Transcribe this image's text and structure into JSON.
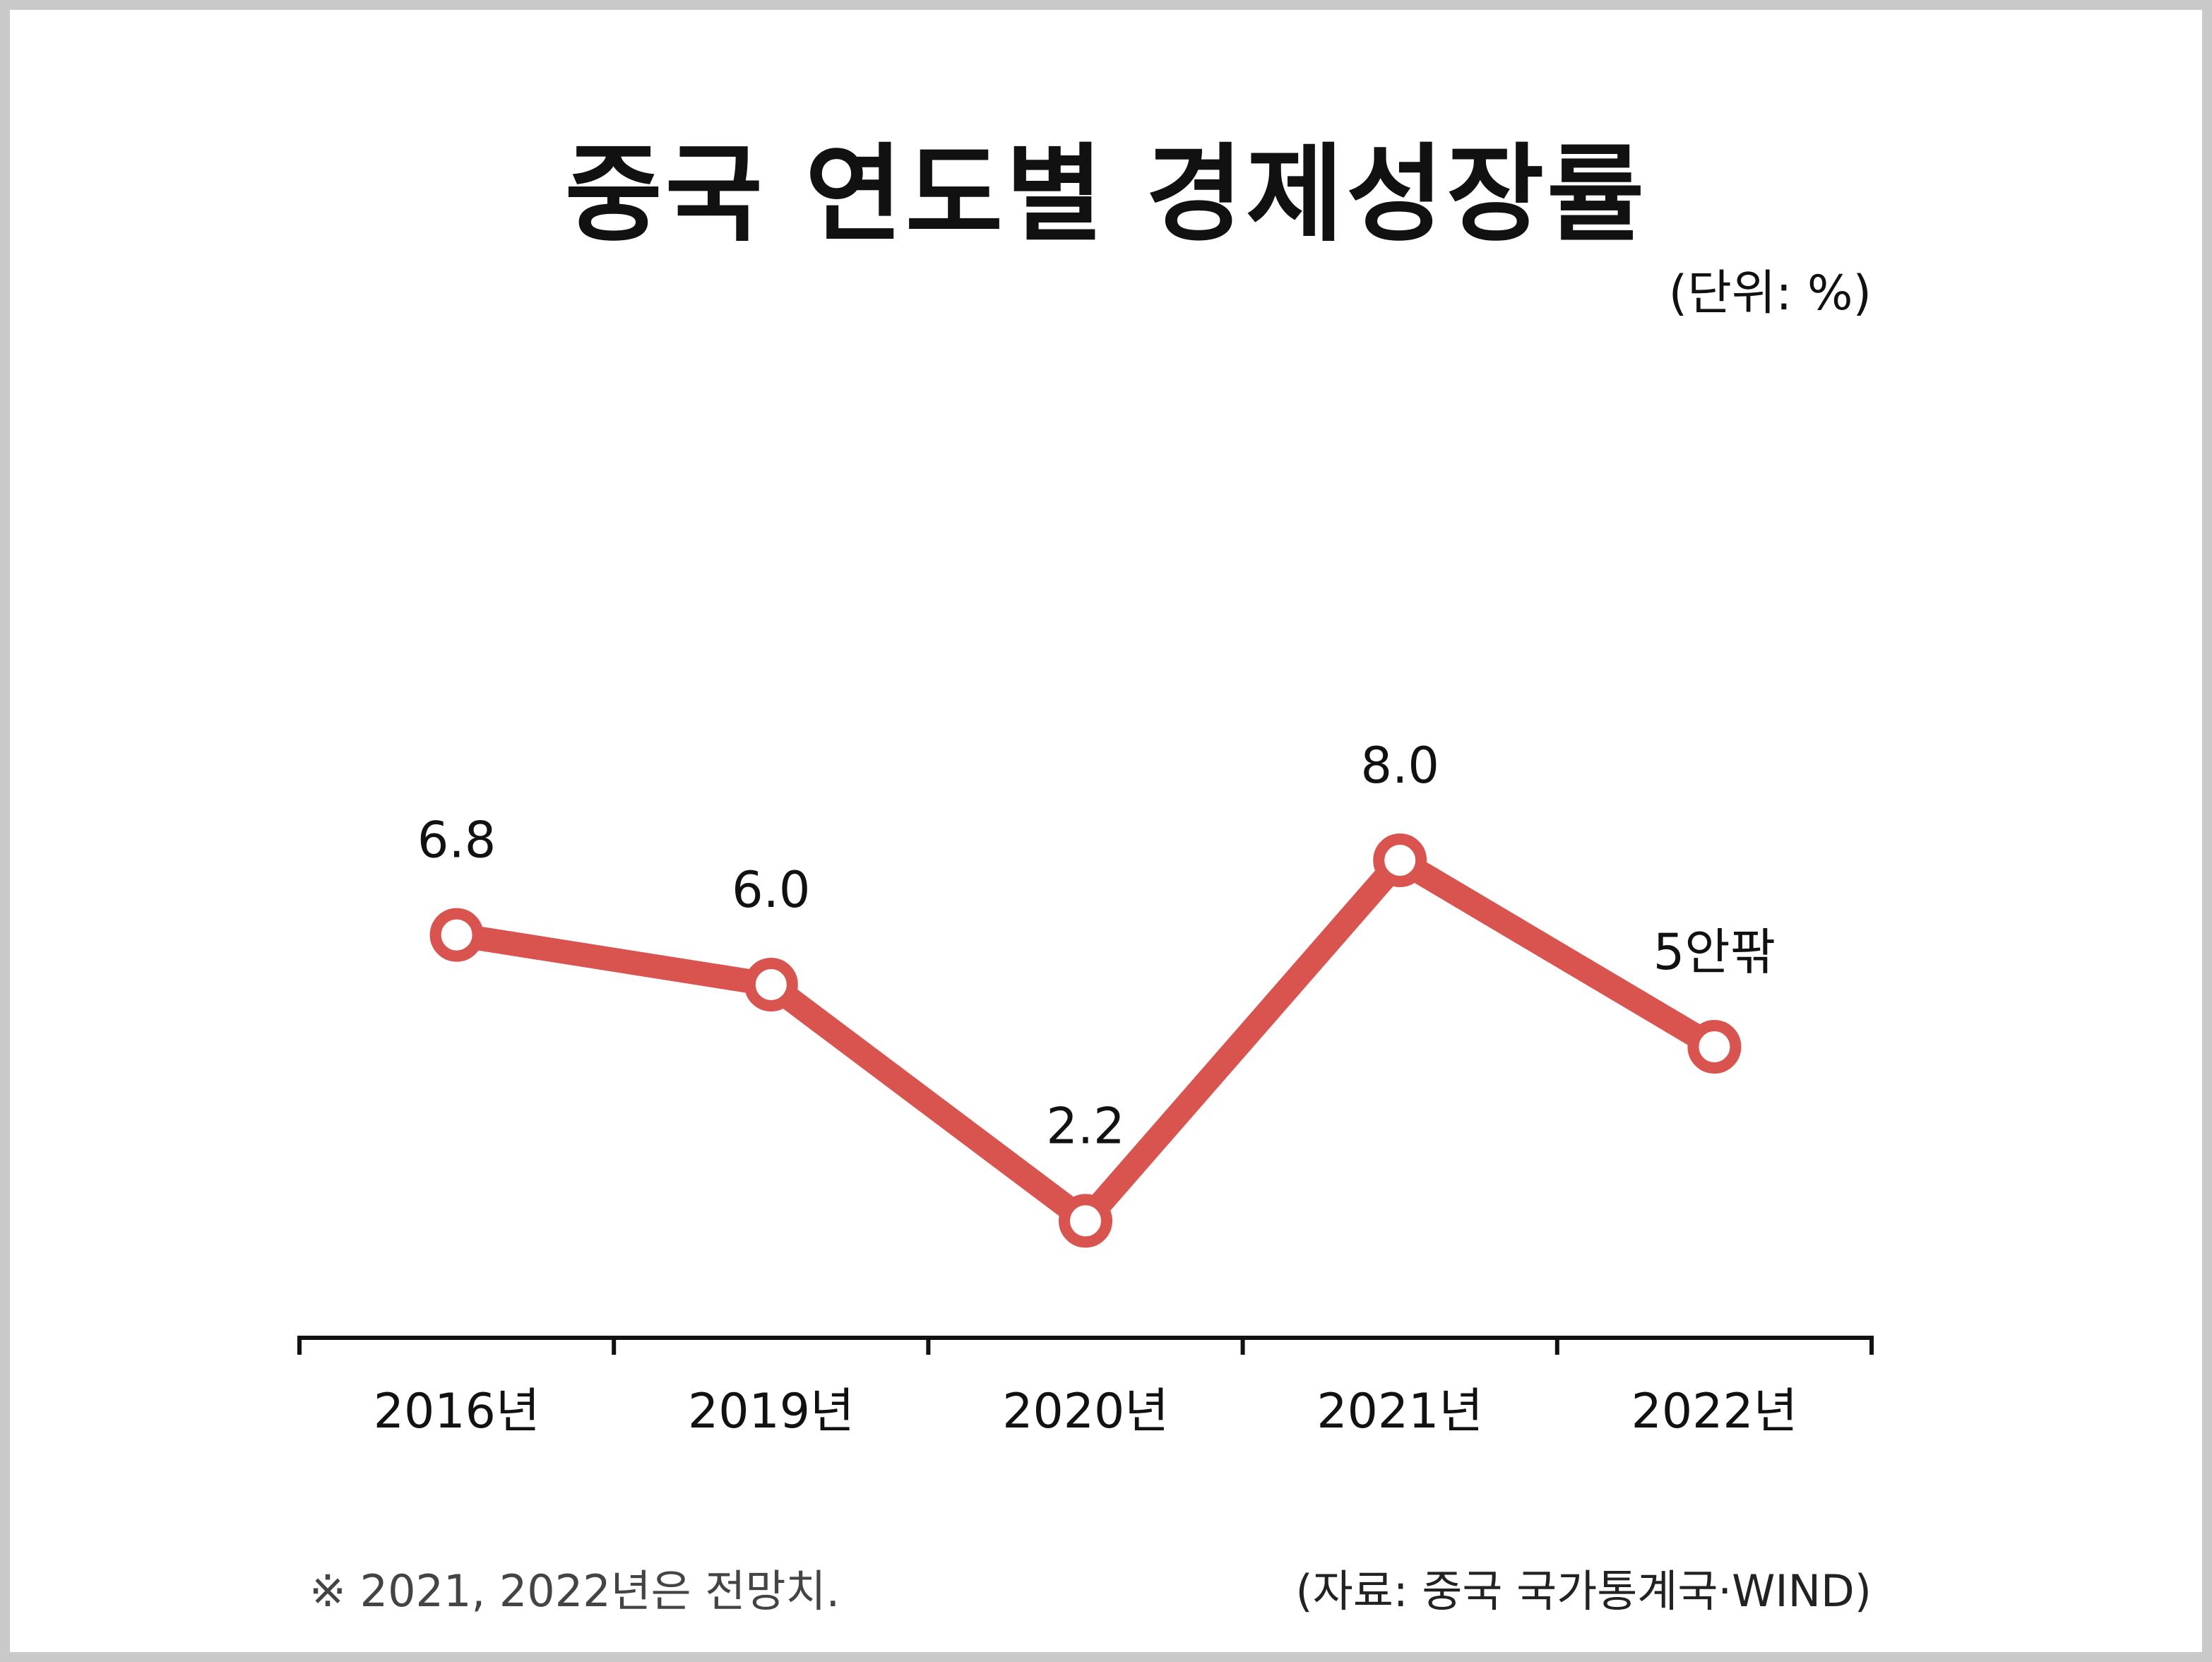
{
  "chart_data": {
    "type": "line",
    "title": "중국 연도별 경제성장률",
    "unit_label": "(단위: %)",
    "categories": [
      "2016년",
      "2019년",
      "2020년",
      "2021년",
      "2022년"
    ],
    "values": [
      6.8,
      6.0,
      2.2,
      8.0,
      5.0
    ],
    "data_labels": [
      "6.8",
      "6.0",
      "2.2",
      "8.0",
      "5안팎"
    ],
    "ylim": [
      0,
      10
    ],
    "grid": false,
    "legend": "none",
    "line_color": "#d9534f",
    "footnote": "※ 2021, 2022년은 전망치.",
    "source": "(자료: 중국 국가통계국·WIND)"
  }
}
